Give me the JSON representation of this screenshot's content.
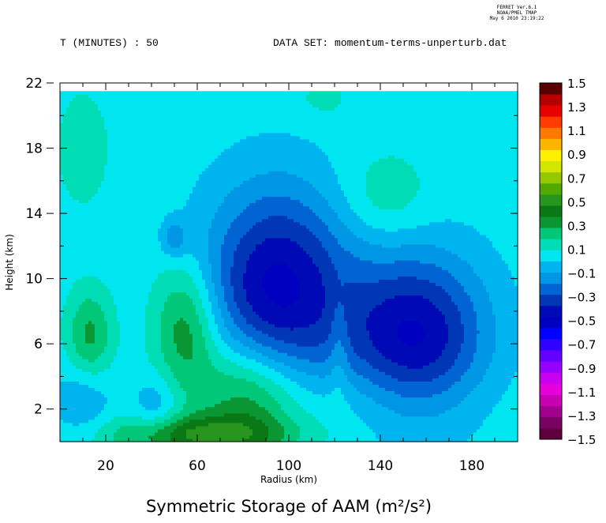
{
  "header": {
    "time_label": "T (MINUTES) : 50",
    "dataset_label": "DATA SET: momentum-terms-unperturb.dat",
    "ferret_lines": [
      "FERRET  Ver.6.1",
      "NOAA/PMEL TMAP",
      "May  6 2010 23:19:22"
    ]
  },
  "chart_data": {
    "type": "heatmap",
    "title": "Symmetric Storage of AAM (m²/s²)",
    "xlabel": "Radius (km)",
    "ylabel": "Height (km)",
    "xlim": [
      0,
      200
    ],
    "ylim": [
      0,
      22
    ],
    "data_extent": {
      "x": [
        0,
        200
      ],
      "y": [
        0,
        21.5
      ]
    },
    "xticks": [
      20,
      60,
      100,
      140,
      180
    ],
    "yticks": [
      2,
      6,
      10,
      14,
      18,
      22
    ],
    "colorbar": {
      "levels": [
        -1.5,
        -1.4,
        -1.3,
        -1.2,
        -1.1,
        -1.0,
        -0.9,
        -0.8,
        -0.7,
        -0.6,
        -0.5,
        -0.4,
        -0.3,
        -0.2,
        -0.1,
        0.0,
        0.1,
        0.2,
        0.3,
        0.4,
        0.5,
        0.6,
        0.7,
        0.8,
        0.9,
        1.0,
        1.1,
        1.2,
        1.3,
        1.4,
        1.5
      ],
      "tick_labels": [
        "1.5",
        "1.3",
        "1.1",
        "0.9",
        "0.7",
        "0.5",
        "0.3",
        "0.1",
        "−0.1",
        "−0.3",
        "−0.5",
        "−0.7",
        "−0.9",
        "−1.1",
        "−1.3",
        "−1.5"
      ],
      "colors": [
        "#5e003c",
        "#7a0064",
        "#a0008c",
        "#c800b4",
        "#e600dc",
        "#c800f0",
        "#9600ff",
        "#6400ff",
        "#3200ff",
        "#0000ff",
        "#0000c0",
        "#000ab4",
        "#0037b4",
        "#0064d2",
        "#0096e6",
        "#00b4f0",
        "#00e6f0",
        "#00dcb4",
        "#00c878",
        "#0a9632",
        "#0a7814",
        "#28961e",
        "#50aa00",
        "#96c800",
        "#d2e600",
        "#fff000",
        "#ffb400",
        "#ff7800",
        "#ff3c00",
        "#e60000",
        "#b40000",
        "#5a0000"
      ]
    },
    "background_value": 0.05,
    "blobs": [
      {
        "x": 95,
        "y": 9.5,
        "sx": 22,
        "sy": 4.3,
        "amp": -0.58
      },
      {
        "x": 155,
        "y": 6.5,
        "sx": 22,
        "sy": 3.6,
        "amp": -0.56
      },
      {
        "x": 42,
        "y": 2.0,
        "sx": 7,
        "sy": 1.5,
        "amp": -0.16
      },
      {
        "x": 10,
        "y": 2.5,
        "sx": 9,
        "sy": 1.8,
        "amp": -0.16
      },
      {
        "x": 50,
        "y": 12.5,
        "sx": 4,
        "sy": 0.8,
        "amp": -0.2
      },
      {
        "x": 55,
        "y": 7.0,
        "sx": 10,
        "sy": 2.8,
        "amp": 0.34
      },
      {
        "x": 13,
        "y": 6.5,
        "sx": 7,
        "sy": 2.0,
        "amp": 0.28
      },
      {
        "x": 82,
        "y": 3.0,
        "sx": 15,
        "sy": 2.5,
        "amp": 0.32
      },
      {
        "x": 60,
        "y": 0.4,
        "sx": 28,
        "sy": 0.9,
        "amp": 0.42
      },
      {
        "x": 125,
        "y": 2.5,
        "sx": 40,
        "sy": 1.8,
        "amp": 0.1
      },
      {
        "x": 122,
        "y": 6.0,
        "sx": 3,
        "sy": 2.5,
        "amp": 0.12
      },
      {
        "x": 142,
        "y": 15.0,
        "sx": 14,
        "sy": 2.0,
        "amp": 0.14
      },
      {
        "x": 10,
        "y": 18.0,
        "sx": 9,
        "sy": 2.8,
        "amp": 0.1
      },
      {
        "x": 115,
        "y": 21.0,
        "sx": 10,
        "sy": 1.0,
        "amp": 0.08
      }
    ]
  }
}
